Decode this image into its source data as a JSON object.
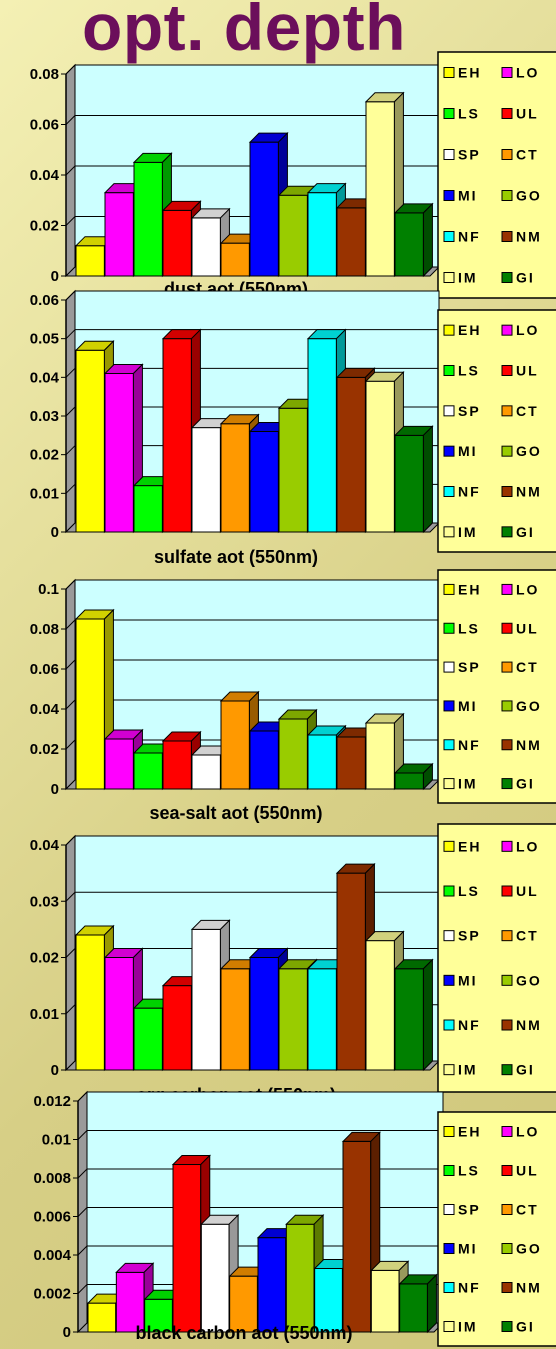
{
  "title": "opt. depth",
  "legend": [
    {
      "code": "EH",
      "color": "#ffff00"
    },
    {
      "code": "LO",
      "color": "#ff00ff"
    },
    {
      "code": "LS",
      "color": "#00ff00"
    },
    {
      "code": "UL",
      "color": "#ff0000"
    },
    {
      "code": "SP",
      "color": "#ffffff"
    },
    {
      "code": "CT",
      "color": "#ff9900"
    },
    {
      "code": "MI",
      "color": "#0000ff"
    },
    {
      "code": "GO",
      "color": "#99cc00"
    },
    {
      "code": "NF",
      "color": "#00ffff"
    },
    {
      "code": "NM",
      "color": "#993300"
    },
    {
      "code": "IM",
      "color": "#ffff99"
    },
    {
      "code": "GI",
      "color": "#008000"
    }
  ],
  "chart_data": [
    {
      "type": "bar",
      "title": "dust aot (550nm)",
      "categories": [
        "EH",
        "LO",
        "LS",
        "UL",
        "SP",
        "CT",
        "MI",
        "GO",
        "NF",
        "NM",
        "IM",
        "GI"
      ],
      "values": [
        0.012,
        0.033,
        0.045,
        0.026,
        0.023,
        0.013,
        0.053,
        0.032,
        0.033,
        0.027,
        0.069,
        0.025
      ],
      "ylim": [
        0,
        0.08
      ],
      "yticks": [
        0,
        0.02,
        0.04,
        0.06,
        0.08
      ],
      "ytick_labels": [
        "0",
        "0.02",
        "0.04",
        "0.06",
        "0.08"
      ],
      "grid": true,
      "legend_position": "right"
    },
    {
      "type": "bar",
      "title": "sulfate aot (550nm)",
      "categories": [
        "EH",
        "LO",
        "LS",
        "UL",
        "SP",
        "CT",
        "MI",
        "GO",
        "NF",
        "NM",
        "IM",
        "GI"
      ],
      "values": [
        0.047,
        0.041,
        0.012,
        0.05,
        0.027,
        0.028,
        0.026,
        0.032,
        0.05,
        0.04,
        0.039,
        0.025
      ],
      "ylim": [
        0,
        0.06
      ],
      "yticks": [
        0,
        0.01,
        0.02,
        0.03,
        0.04,
        0.05,
        0.06
      ],
      "ytick_labels": [
        "0",
        "0.01",
        "0.02",
        "0.03",
        "0.04",
        "0.05",
        "0.06"
      ],
      "grid": true,
      "legend_position": "right"
    },
    {
      "type": "bar",
      "title": "sea-salt aot (550nm)",
      "categories": [
        "EH",
        "LO",
        "LS",
        "UL",
        "SP",
        "CT",
        "MI",
        "GO",
        "NF",
        "NM",
        "IM",
        "GI"
      ],
      "values": [
        0.085,
        0.025,
        0.018,
        0.024,
        0.017,
        0.044,
        0.029,
        0.035,
        0.027,
        0.026,
        0.033,
        0.008
      ],
      "ylim": [
        0,
        0.1
      ],
      "yticks": [
        0,
        0.02,
        0.04,
        0.06,
        0.08,
        0.1
      ],
      "ytick_labels": [
        "0",
        "0.02",
        "0.04",
        "0.06",
        "0.08",
        "0.1"
      ],
      "grid": true,
      "legend_position": "right"
    },
    {
      "type": "bar",
      "title": "org.carbon aot (550nm)",
      "categories": [
        "EH",
        "LO",
        "LS",
        "UL",
        "SP",
        "CT",
        "MI",
        "GO",
        "NF",
        "NM",
        "IM",
        "GI"
      ],
      "values": [
        0.024,
        0.02,
        0.011,
        0.015,
        0.025,
        0.018,
        0.02,
        0.018,
        0.018,
        0.035,
        0.023,
        0.018
      ],
      "ylim": [
        0,
        0.04
      ],
      "yticks": [
        0,
        0.01,
        0.02,
        0.03,
        0.04
      ],
      "ytick_labels": [
        "0",
        "0.01",
        "0.02",
        "0.03",
        "0.04"
      ],
      "grid": true,
      "legend_position": "right"
    },
    {
      "type": "bar",
      "title": "black carbon aot (550nm)",
      "categories": [
        "EH",
        "LO",
        "LS",
        "UL",
        "SP",
        "CT",
        "MI",
        "GO",
        "NF",
        "NM",
        "IM",
        "GI"
      ],
      "values": [
        0.0015,
        0.0031,
        0.0017,
        0.0087,
        0.0056,
        0.0029,
        0.0049,
        0.0056,
        0.0033,
        0.0099,
        0.0032,
        0.0025
      ],
      "ylim": [
        0,
        0.012
      ],
      "yticks": [
        0,
        0.002,
        0.004,
        0.006,
        0.008,
        0.01,
        0.012
      ],
      "ytick_labels": [
        "0",
        "0.002",
        "0.004",
        "0.006",
        "0.008",
        "0.01",
        "0.012"
      ],
      "grid": true,
      "legend_position": "right"
    }
  ]
}
